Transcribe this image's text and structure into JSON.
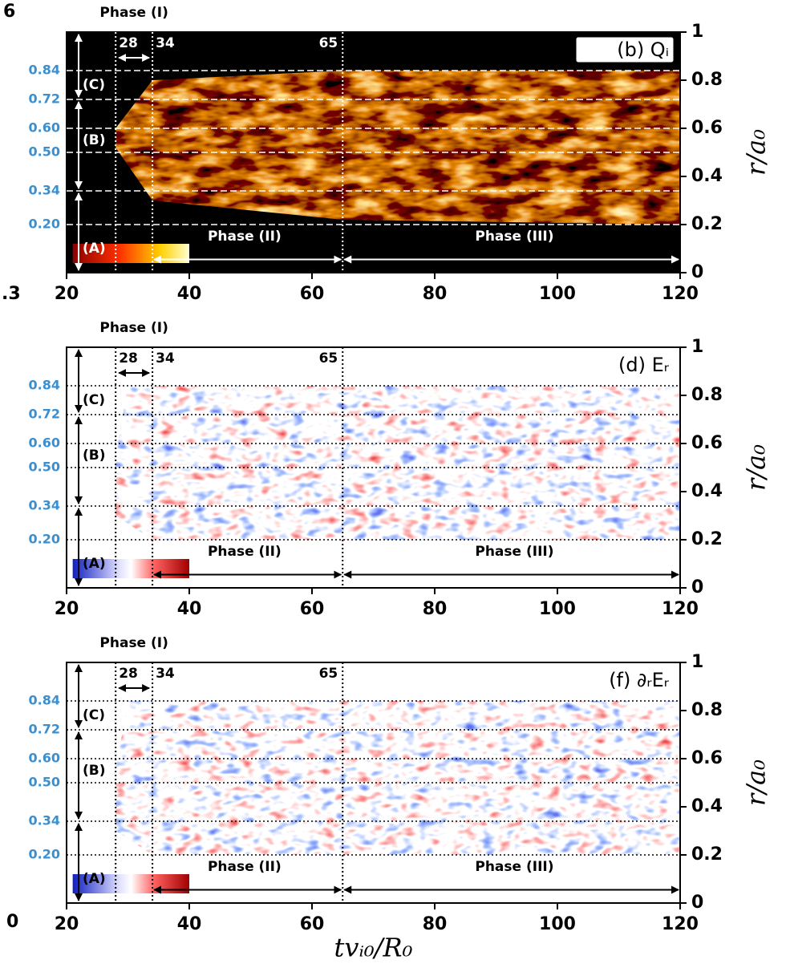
{
  "chart_data": [
    {
      "type": "heatmap",
      "title": "(b) Qᵢ",
      "colormap": "hot",
      "xlim": [
        20,
        120
      ],
      "xticks": [
        20,
        40,
        60,
        80,
        100,
        120
      ],
      "ylim": [
        0,
        1
      ],
      "yticks": [
        0,
        0.2,
        0.4,
        0.6,
        0.8,
        1
      ],
      "ylabel": "r/a₀",
      "region_boundaries": [
        0.84,
        0.72,
        {
          "value": 0.6,
          "label": "0.60"
        },
        {
          "value": 0.5,
          "label": "0.50"
        },
        0.34,
        {
          "value": 0.2,
          "label": "0.20"
        }
      ],
      "phase_times": [
        28,
        34,
        65
      ],
      "phase_labels": [
        "Phase (I)",
        "Phase (II)",
        "Phase (III)"
      ],
      "region_labels": [
        "(C)",
        "(B)",
        "(A)"
      ]
    },
    {
      "type": "heatmap",
      "title": "(d) Eᵣ",
      "colormap": "bwr",
      "xlim": [
        20,
        120
      ],
      "xticks": [
        20,
        40,
        60,
        80,
        100,
        120
      ],
      "ylim": [
        0,
        1
      ],
      "yticks": [
        0,
        0.2,
        0.4,
        0.6,
        0.8,
        1
      ],
      "ylabel": "r/a₀",
      "region_boundaries": [
        0.84,
        0.72,
        {
          "value": 0.6,
          "label": "0.60"
        },
        {
          "value": 0.5,
          "label": "0.50"
        },
        0.34,
        {
          "value": 0.2,
          "label": "0.20"
        }
      ],
      "phase_times": [
        28,
        34,
        65
      ],
      "phase_labels": [
        "Phase (I)",
        "Phase (II)",
        "Phase (III)"
      ],
      "region_labels": [
        "(C)",
        "(B)",
        "(A)"
      ]
    },
    {
      "type": "heatmap",
      "title": "(f) ∂ᵣEᵣ",
      "colormap": "bwr",
      "xlim": [
        20,
        120
      ],
      "xticks": [
        20,
        40,
        60,
        80,
        100,
        120
      ],
      "ylim": [
        0,
        1
      ],
      "yticks": [
        0,
        0.2,
        0.4,
        0.6,
        0.8,
        1
      ],
      "ylabel": "r/a₀",
      "xlabel": "tvᵢ₀/R₀",
      "region_boundaries": [
        0.84,
        0.72,
        {
          "value": 0.6,
          "label": "0.60"
        },
        {
          "value": 0.5,
          "label": "0.50"
        },
        0.34,
        {
          "value": 0.2,
          "label": "0.20"
        }
      ],
      "phase_times": [
        28,
        34,
        65
      ],
      "phase_labels": [
        "Phase (I)",
        "Phase (II)",
        "Phase (III)"
      ],
      "region_labels": [
        "(C)",
        "(B)",
        "(A)"
      ]
    }
  ],
  "cropped_labels": [
    "6",
    ".3",
    "0"
  ]
}
